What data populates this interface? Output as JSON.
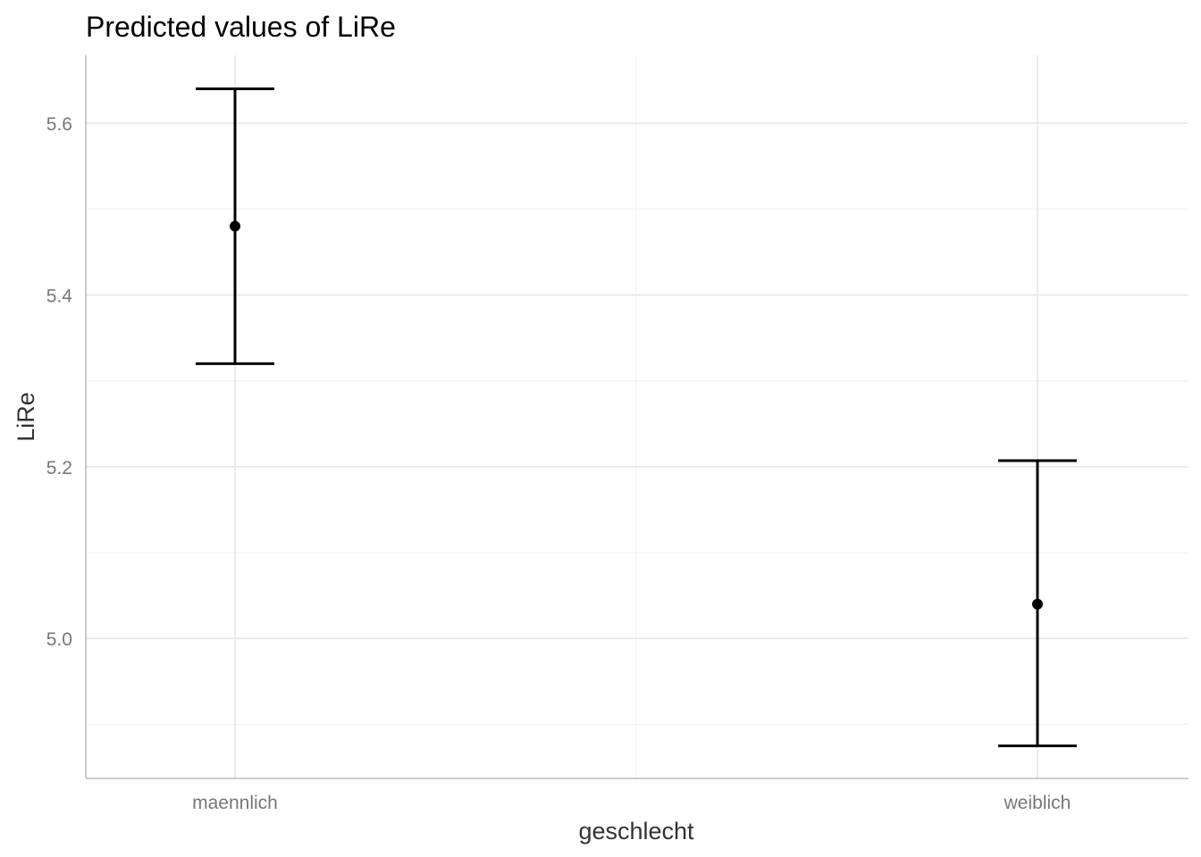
{
  "chart_data": {
    "type": "errorbar",
    "title": "Predicted values of LiRe",
    "xlabel": "geschlecht",
    "ylabel": "LiRe",
    "categories": [
      "maennlich",
      "weiblich"
    ],
    "values": [
      5.48,
      5.04
    ],
    "ci_low": [
      5.32,
      4.875
    ],
    "ci_high": [
      5.64,
      5.207
    ],
    "ylim": [
      4.837,
      5.679
    ],
    "y_ticks": [
      5.0,
      5.2,
      5.4,
      5.6
    ],
    "y_tick_labels": [
      "5.0",
      "5.2",
      "5.4",
      "5.6"
    ],
    "y_minor_ticks": [
      4.9,
      5.1,
      5.3,
      5.5
    ],
    "grid": true,
    "legend": "none"
  }
}
